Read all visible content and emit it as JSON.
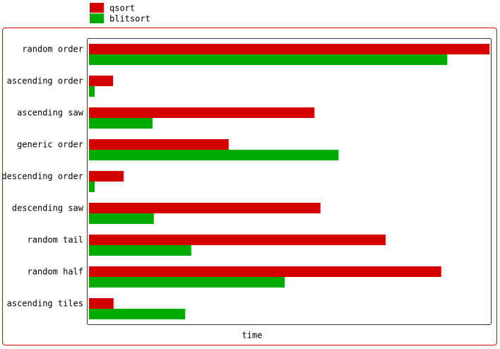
{
  "chart_data": {
    "type": "bar",
    "orientation": "horizontal",
    "x_label": "time",
    "categories": [
      "random order",
      "ascending order",
      "ascending saw",
      "generic order",
      "descending order",
      "descending saw",
      "random tail",
      "random half",
      "ascending tiles"
    ],
    "series": [
      {
        "name": "qsort",
        "color": "#d40000",
        "values": [
          99.5,
          6,
          56,
          34.7,
          8.6,
          57.5,
          73.7,
          87.5,
          6.1
        ]
      },
      {
        "name": "blitsort",
        "color": "#00aa00",
        "values": [
          89,
          1.4,
          15.8,
          62,
          1.4,
          16.1,
          25.4,
          48.6,
          23.9
        ]
      }
    ],
    "xlim": [
      0,
      100
    ],
    "legend": "top"
  }
}
